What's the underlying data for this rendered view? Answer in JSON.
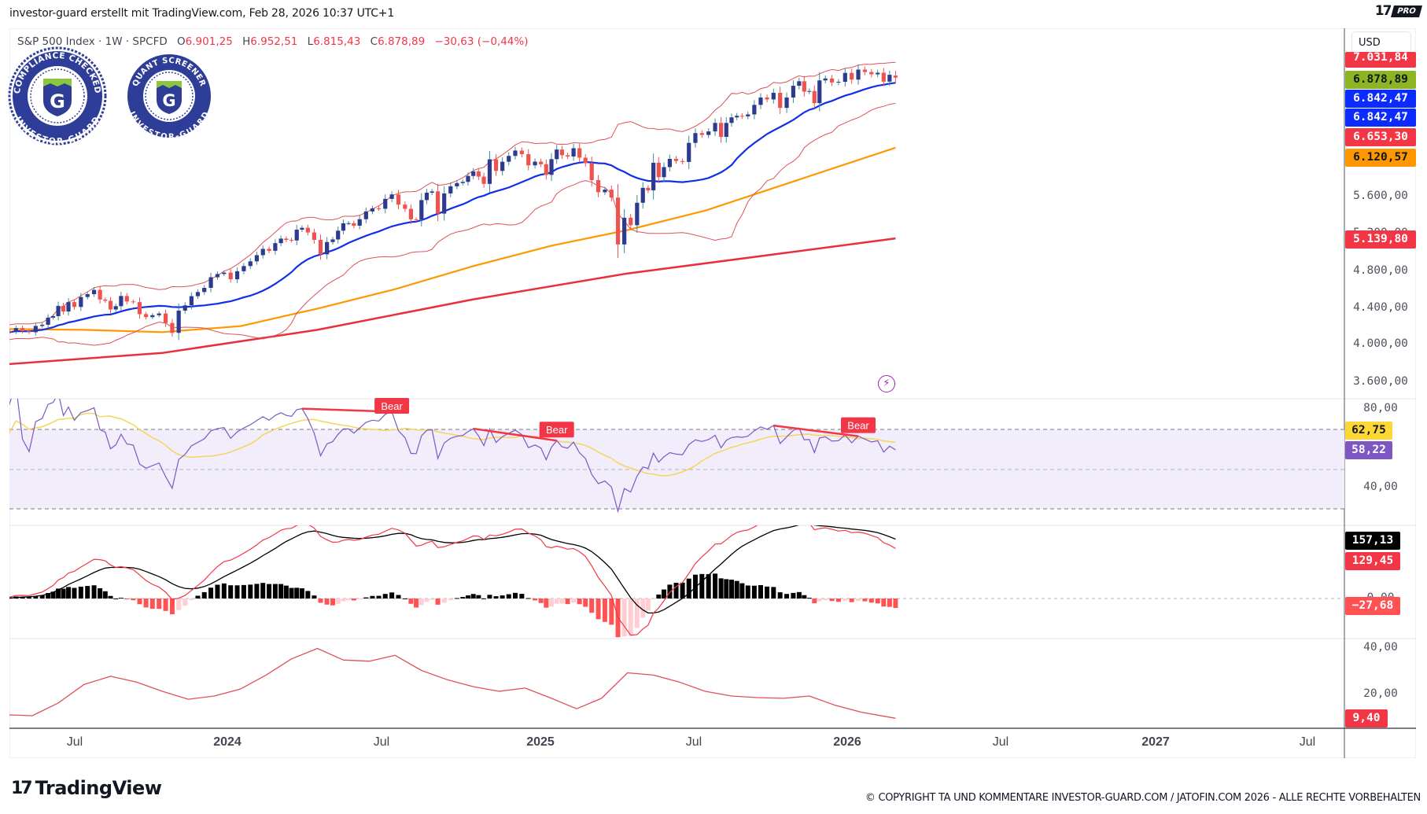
{
  "header": {
    "attribution": "investor-guard erstellt mit TradingView.com, Feb 28, 2026 10:37 UTC+1"
  },
  "brand": {
    "pro_mark": "17",
    "pro_badge": "PRO",
    "footer_mark": "17",
    "footer_logo": "TradingView",
    "copyright": "© COPYRIGHT TA UND KOMMENTARE INVESTOR-GUARD.COM / JATOFIN.COM 2026 - ALLE RECHTE VORBEHALTEN"
  },
  "legend": {
    "symbol": "S&P 500 Index · 1W · SPCFD",
    "open_label": "O",
    "open": "6.901,25",
    "high_label": "H",
    "high": "6.952,51",
    "low_label": "L",
    "low": "6.815,43",
    "close_label": "C",
    "close": "6.878,89",
    "change": "−30,63 (−0,44%)"
  },
  "badges": [
    {
      "top": "COMPLIANCE CHECKED",
      "bottom": "INVESTOR-GUARD",
      "letter": "G"
    },
    {
      "top": "QUANT SCREENER",
      "bottom": "INVESTOR-GUARD",
      "letter": "G"
    }
  ],
  "price_axis": {
    "currency": "USD",
    "ticks": [
      "5.600,00",
      "5.200,00",
      "4.800,00",
      "4.400,00",
      "4.000,00",
      "3.600,00"
    ],
    "labels": [
      {
        "value": "7.031,84",
        "bg": "#f23645",
        "fg": "#ffffff"
      },
      {
        "value": "6.878,89",
        "bg": "#8cb423",
        "fg": "#131722"
      },
      {
        "value": "6.842,47",
        "bg": "#0b2bff",
        "fg": "#ffffff"
      },
      {
        "value": "6.842,47",
        "bg": "#0b2bff",
        "fg": "#ffffff"
      },
      {
        "value": "6.653,30",
        "bg": "#f23645",
        "fg": "#ffffff"
      },
      {
        "value": "6.120,57",
        "bg": "#ff9800",
        "fg": "#131722"
      },
      {
        "value": "5.139,80",
        "bg": "#f23645",
        "fg": "#ffffff"
      }
    ]
  },
  "rsi_axis": {
    "ticks": [
      "80,00",
      "40,00"
    ],
    "labels": [
      {
        "value": "62,75",
        "bg": "#fdd835",
        "fg": "#131722"
      },
      {
        "value": "58,22",
        "bg": "#7e57c2",
        "fg": "#ffffff"
      }
    ]
  },
  "macd_axis": {
    "ticks": [
      "0,00"
    ],
    "labels": [
      {
        "value": "157,13",
        "bg": "#000000",
        "fg": "#ffffff"
      },
      {
        "value": "129,45",
        "bg": "#f23645",
        "fg": "#ffffff"
      },
      {
        "value": "−27,68",
        "bg": "#ff5252",
        "fg": "#ffffff"
      }
    ]
  },
  "adx_axis": {
    "ticks": [
      "40,00",
      "20,00"
    ],
    "labels": [
      {
        "value": "9,40",
        "bg": "#f23645",
        "fg": "#ffffff"
      }
    ]
  },
  "time_axis": [
    {
      "label": "Jul",
      "year": false
    },
    {
      "label": "2024",
      "year": true
    },
    {
      "label": "Jul",
      "year": false
    },
    {
      "label": "2025",
      "year": true
    },
    {
      "label": "Jul",
      "year": false
    },
    {
      "label": "2026",
      "year": true
    },
    {
      "label": "Jul",
      "year": false
    },
    {
      "label": "2027",
      "year": true
    },
    {
      "label": "Jul",
      "year": false
    }
  ],
  "icons": {
    "alert": "lightning-icon"
  },
  "colors": {
    "up": "#2e3a8f",
    "down": "#ef5350",
    "up_wick": "#3b8e96",
    "bb": "#e0505a",
    "basis": "#1030e8",
    "sma_mid": "#ff9800",
    "sma_long": "#e8303d",
    "rsi": "#7e57c2",
    "rsi_ma": "#f5d55a",
    "rsi_band": "#f1edfb",
    "macd": "#f23645",
    "signal": "#000000",
    "hist_pos": "#000000",
    "hist_neg": "#ff5252",
    "hist_neg_rising": "#ffcdd2",
    "adx": "#e0505a",
    "bear": "#f23645"
  },
  "chart_data": {
    "type": "candlestick",
    "symbol": "S&P 500 Index",
    "interval": "1W",
    "last_candle": {
      "open": 6901.25,
      "high": 6952.51,
      "low": 6815.43,
      "close": 6878.89
    },
    "weekly_closes": [
      {
        "month": "2023-04",
        "closes": [
          4105,
          4137,
          4130,
          4169
        ]
      },
      {
        "month": "2023-05",
        "closes": [
          4136,
          4124,
          4192,
          4205
        ]
      },
      {
        "month": "2023-06",
        "closes": [
          4282,
          4298,
          4409,
          4348,
          4450
        ]
      },
      {
        "month": "2023-07",
        "closes": [
          4398,
          4505,
          4536,
          4582
        ]
      },
      {
        "month": "2023-08",
        "closes": [
          4478,
          4464,
          4370,
          4406,
          4516
        ]
      },
      {
        "month": "2023-09",
        "closes": [
          4457,
          4450,
          4320,
          4288
        ]
      },
      {
        "month": "2023-10",
        "closes": [
          4308,
          4327,
          4224,
          4117
        ]
      },
      {
        "month": "2023-11",
        "closes": [
          4358,
          4415,
          4514,
          4559
        ]
      },
      {
        "month": "2023-12",
        "closes": [
          4604,
          4719,
          4754,
          4769
        ]
      },
      {
        "month": "2024-01",
        "closes": [
          4697,
          4784,
          4840,
          4891
        ]
      },
      {
        "month": "2024-02",
        "closes": [
          4958,
          5026,
          5005,
          5088
        ]
      },
      {
        "month": "2024-03",
        "closes": [
          5137,
          5123,
          5117,
          5234,
          5254
        ]
      },
      {
        "month": "2024-04",
        "closes": [
          5204,
          5123,
          4967,
          5100
        ]
      },
      {
        "month": "2024-05",
        "closes": [
          5128,
          5223,
          5303,
          5304,
          5277
        ]
      },
      {
        "month": "2024-06",
        "closes": [
          5347,
          5431,
          5464,
          5460
        ]
      },
      {
        "month": "2024-07",
        "closes": [
          5567,
          5615,
          5505,
          5459
        ]
      },
      {
        "month": "2024-08",
        "closes": [
          5346,
          5344,
          5554,
          5634,
          5648
        ]
      },
      {
        "month": "2024-09",
        "closes": [
          5408,
          5626,
          5703,
          5738
        ]
      },
      {
        "month": "2024-10",
        "closes": [
          5751,
          5815,
          5864,
          5808,
          5729
        ]
      },
      {
        "month": "2024-11",
        "closes": [
          5995,
          5870,
          5969,
          6032
        ]
      },
      {
        "month": "2024-12",
        "closes": [
          6090,
          6051,
          5930,
          5970
        ]
      },
      {
        "month": "2025-01",
        "closes": [
          5942,
          5827,
          5997,
          6101,
          6040
        ]
      },
      {
        "month": "2025-02",
        "closes": [
          6026,
          6115,
          6013,
          5955
        ]
      },
      {
        "month": "2025-03",
        "closes": [
          5770,
          5639,
          5667,
          5581
        ]
      },
      {
        "month": "2025-04",
        "closes": [
          5074,
          5363,
          5282,
          5525
        ]
      },
      {
        "month": "2025-05",
        "closes": [
          5686,
          5659,
          5958,
          5802,
          5911
        ]
      },
      {
        "month": "2025-06",
        "closes": [
          6000,
          5977,
          5967,
          6173
        ]
      },
      {
        "month": "2025-07",
        "closes": [
          6279,
          6259,
          6297,
          6389
        ]
      },
      {
        "month": "2025-08",
        "closes": [
          6238,
          6389,
          6449,
          6466,
          6460
        ]
      },
      {
        "month": "2025-09",
        "closes": [
          6481,
          6584,
          6664,
          6643
        ]
      },
      {
        "month": "2025-10",
        "closes": [
          6715,
          6552,
          6664,
          6791
        ]
      },
      {
        "month": "2025-11",
        "closes": [
          6840,
          6728,
          6734,
          6603,
          6849
        ]
      },
      {
        "month": "2025-12",
        "closes": [
          6870,
          6827,
          6834,
          6930
        ]
      },
      {
        "month": "2026-01",
        "closes": [
          6858,
          6966,
          6940,
          6915
        ]
      },
      {
        "month": "2026-02",
        "closes": [
          6932,
          6836,
          6910,
          6878.89
        ]
      }
    ],
    "bollinger": {
      "length": 20,
      "mult": 2,
      "last_upper": 7031.84,
      "last_basis": 6842.47,
      "last_lower": 6653.3
    },
    "sma_mid": {
      "last": 6120.57,
      "points": [
        [
          "2023-04",
          4160
        ],
        [
          "2023-07",
          4150
        ],
        [
          "2023-10",
          4125
        ],
        [
          "2024-01",
          4190
        ],
        [
          "2024-04",
          4380
        ],
        [
          "2024-07",
          4590
        ],
        [
          "2024-10",
          4840
        ],
        [
          "2025-01",
          5060
        ],
        [
          "2025-04",
          5230
        ],
        [
          "2025-07",
          5440
        ],
        [
          "2025-10",
          5720
        ],
        [
          "2026-02",
          6120.57
        ]
      ]
    },
    "sma_long": {
      "last": 5139.8,
      "points": [
        [
          "2023-04",
          3770
        ],
        [
          "2023-10",
          3900
        ],
        [
          "2024-04",
          4150
        ],
        [
          "2024-10",
          4480
        ],
        [
          "2025-04",
          4760
        ],
        [
          "2025-10",
          4980
        ],
        [
          "2026-02",
          5139.8
        ]
      ]
    },
    "rsi": {
      "length": 14,
      "last": 58.22,
      "ma_last": 62.75,
      "overbought": 70,
      "oversold": 30,
      "ylim": [
        20,
        85
      ]
    },
    "divergences": [
      {
        "type": "Bear",
        "from": "2024-03",
        "to": "2024-07"
      },
      {
        "type": "Bear",
        "from": "2024-10",
        "to": "2025-01"
      },
      {
        "type": "Bear",
        "from": "2025-10",
        "to": "2026-01"
      }
    ],
    "macd": {
      "fast": 12,
      "slow": 26,
      "signal": 9,
      "last_macd": 129.45,
      "last_signal": 157.13,
      "last_hist": -27.68
    },
    "adx": {
      "last": 9.4,
      "points": [
        [
          "2023-04",
          11
        ],
        [
          "2023-05",
          10.5
        ],
        [
          "2023-06",
          16
        ],
        [
          "2023-07",
          24
        ],
        [
          "2023-08",
          27.5
        ],
        [
          "2023-09",
          25
        ],
        [
          "2023-10",
          21
        ],
        [
          "2023-11",
          17.6
        ],
        [
          "2023-12",
          19
        ],
        [
          "2024-01",
          22
        ],
        [
          "2024-02",
          28
        ],
        [
          "2024-03",
          35
        ],
        [
          "2024-04",
          39.5
        ],
        [
          "2024-05",
          34.5
        ],
        [
          "2024-06",
          34
        ],
        [
          "2024-07",
          36.5
        ],
        [
          "2024-08",
          30
        ],
        [
          "2024-09",
          26
        ],
        [
          "2024-10",
          23
        ],
        [
          "2024-11",
          21
        ],
        [
          "2024-12",
          22.4
        ],
        [
          "2025-01",
          18
        ],
        [
          "2025-02",
          13.5
        ],
        [
          "2025-03",
          18
        ],
        [
          "2025-04",
          29
        ],
        [
          "2025-05",
          28
        ],
        [
          "2025-06",
          25
        ],
        [
          "2025-07",
          21
        ],
        [
          "2025-08",
          19
        ],
        [
          "2025-09",
          18.3
        ],
        [
          "2025-10",
          18
        ],
        [
          "2025-11",
          19
        ],
        [
          "2025-12",
          15
        ],
        [
          "2026-01",
          12
        ],
        [
          "2026-02",
          9.4
        ]
      ]
    },
    "price_ylim": [
      3500,
      7100
    ]
  }
}
